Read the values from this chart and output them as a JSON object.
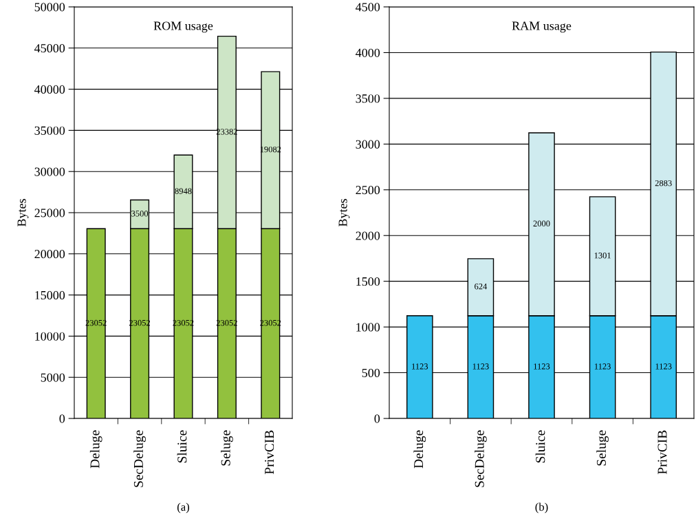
{
  "chart_data": [
    {
      "type": "bar",
      "title": "ROM usage",
      "ylabel": "Bytes",
      "annotations": [
        "(a)"
      ],
      "categories": [
        "Deluge",
        "SecDeluge",
        "Sluice",
        "Seluge",
        "PrivCIB"
      ],
      "stacked": true,
      "data_labels": true,
      "grid": "y",
      "ylim": [
        0,
        50000
      ],
      "yticks": [
        0,
        5000,
        10000,
        15000,
        20000,
        25000,
        30000,
        35000,
        40000,
        45000,
        50000
      ],
      "series": [
        {
          "color": "#92c13e",
          "values": [
            23052,
            23052,
            23052,
            23052,
            23052
          ]
        },
        {
          "color": "#cde5c6",
          "values": [
            null,
            3500,
            8948,
            23382,
            19082
          ]
        }
      ]
    },
    {
      "type": "bar",
      "title": "RAM usage",
      "ylabel": "Bytes",
      "annotations": [
        "(b)"
      ],
      "categories": [
        "Deluge",
        "SecDeluge",
        "Sluice",
        "Seluge",
        "PrivCIB"
      ],
      "stacked": true,
      "data_labels": true,
      "grid": "y",
      "ylim": [
        0,
        4500
      ],
      "yticks": [
        0,
        500,
        1000,
        1500,
        2000,
        2500,
        3000,
        3500,
        4000,
        4500
      ],
      "series": [
        {
          "color": "#33c1ee",
          "values": [
            1123,
            1123,
            1123,
            1123,
            1123
          ]
        },
        {
          "color": "#cfebef",
          "values": [
            null,
            624,
            2000,
            1301,
            2883
          ]
        }
      ]
    }
  ]
}
